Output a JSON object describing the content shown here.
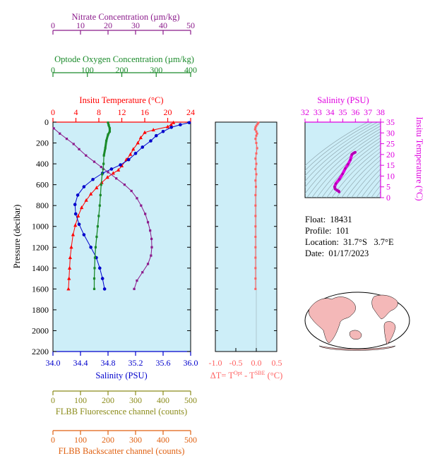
{
  "colors": {
    "nitrate": "#8b1a8b",
    "oxygen": "#1a8a2a",
    "temperature": "#ff0000",
    "salinity": "#0000cc",
    "fluorescence": "#8b8b1a",
    "backscatter": "#e06010",
    "delta_t": "#ff6060",
    "ts_axis": "#e000e0",
    "panel_bg": "#cdeef8"
  },
  "chart_data": [
    {
      "type": "line",
      "panel": "main-profile",
      "ylabel": "Pressure (decibar)",
      "ylim": [
        2200,
        0
      ],
      "yticks": [
        0,
        200,
        400,
        600,
        800,
        1000,
        1200,
        1400,
        1600,
        1800,
        2000,
        2200
      ],
      "axes": {
        "nitrate": {
          "label": "Nitrate Concentration (µm/kg)",
          "range": [
            0,
            50
          ],
          "ticks": [
            "0",
            "10",
            "20",
            "30",
            "40",
            "50"
          ]
        },
        "oxygen": {
          "label": "Optode Oxygen Concentration (µm/kg)",
          "range": [
            0,
            400
          ],
          "ticks": [
            "0",
            "100",
            "200",
            "300",
            "400"
          ]
        },
        "temperature": {
          "label": "Insitu Temperature (°C)",
          "range": [
            0,
            24
          ],
          "ticks": [
            "0",
            "4",
            "8",
            "12",
            "16",
            "20",
            "24"
          ]
        },
        "salinity": {
          "label": "Salinity (PSU)",
          "range": [
            34.0,
            36.0
          ],
          "ticks": [
            "34.0",
            "34.4",
            "34.8",
            "35.2",
            "35.6",
            "36.0"
          ]
        },
        "fluorescence": {
          "label": "FLBB Fluorescence channel (counts)",
          "range": [
            0,
            500
          ],
          "ticks": [
            "0",
            "100",
            "200",
            "300",
            "400",
            "500"
          ]
        },
        "backscatter": {
          "label": "FLBB Backscatter channel (counts)",
          "range": [
            0,
            500
          ],
          "ticks": [
            "0",
            "100",
            "200",
            "300",
            "400",
            "500"
          ]
        }
      },
      "series": [
        {
          "axis": "temperature",
          "marker": "triangle",
          "points": [
            [
              21.0,
              5
            ],
            [
              20.6,
              25
            ],
            [
              20.0,
              45
            ],
            [
              17.5,
              75
            ],
            [
              16.0,
              100
            ],
            [
              15.3,
              150
            ],
            [
              14.8,
              200
            ],
            [
              14.0,
              260
            ],
            [
              13.5,
              310
            ],
            [
              12.8,
              360
            ],
            [
              12.0,
              420
            ],
            [
              11.4,
              460
            ],
            [
              10.5,
              490
            ],
            [
              9.5,
              530
            ],
            [
              8.5,
              580
            ],
            [
              7.6,
              630
            ],
            [
              6.6,
              690
            ],
            [
              5.8,
              750
            ],
            [
              5.0,
              820
            ],
            [
              4.4,
              900
            ],
            [
              3.9,
              990
            ],
            [
              3.5,
              1080
            ],
            [
              3.2,
              1200
            ],
            [
              3.0,
              1300
            ],
            [
              2.9,
              1400
            ],
            [
              2.8,
              1500
            ],
            [
              2.7,
              1600
            ]
          ]
        },
        {
          "axis": "salinity",
          "marker": "circle",
          "points": [
            [
              35.98,
              5
            ],
            [
              35.85,
              25
            ],
            [
              35.72,
              50
            ],
            [
              35.6,
              90
            ],
            [
              35.5,
              130
            ],
            [
              35.42,
              180
            ],
            [
              35.3,
              240
            ],
            [
              35.2,
              300
            ],
            [
              35.1,
              360
            ],
            [
              34.98,
              410
            ],
            [
              34.85,
              450
            ],
            [
              34.72,
              490
            ],
            [
              34.58,
              550
            ],
            [
              34.45,
              620
            ],
            [
              34.36,
              700
            ],
            [
              34.32,
              790
            ],
            [
              34.33,
              880
            ],
            [
              34.38,
              980
            ],
            [
              34.45,
              1080
            ],
            [
              34.55,
              1200
            ],
            [
              34.63,
              1300
            ],
            [
              34.68,
              1400
            ],
            [
              34.72,
              1500
            ],
            [
              34.75,
              1600
            ]
          ]
        },
        {
          "axis": "oxygen",
          "marker": "square",
          "points": [
            [
              160,
              5
            ],
            [
              162,
              30
            ],
            [
              165,
              60
            ],
            [
              165,
              90
            ],
            [
              160,
              120
            ],
            [
              155,
              180
            ],
            [
              152,
              250
            ],
            [
              148,
              320
            ],
            [
              147,
              400
            ],
            [
              146,
              450
            ],
            [
              143,
              500
            ],
            [
              140,
              600
            ],
            [
              138,
              700
            ],
            [
              136,
              800
            ],
            [
              133,
              900
            ],
            [
              130,
              1000
            ],
            [
              127,
              1100
            ],
            [
              124,
              1200
            ],
            [
              122,
              1300
            ],
            [
              121,
              1400
            ],
            [
              120,
              1500
            ],
            [
              120,
              1600
            ]
          ]
        },
        {
          "axis": "nitrate",
          "marker": "square",
          "points": [
            [
              0.3,
              60
            ],
            [
              2.5,
              110
            ],
            [
              5.0,
              160
            ],
            [
              7.5,
              210
            ],
            [
              9.5,
              260
            ],
            [
              12.0,
              320
            ],
            [
              15.0,
              380
            ],
            [
              17.5,
              430
            ],
            [
              20.0,
              480
            ],
            [
              23.0,
              540
            ],
            [
              26.0,
              600
            ],
            [
              28.5,
              660
            ],
            [
              30.5,
              730
            ],
            [
              32.0,
              800
            ],
            [
              33.5,
              880
            ],
            [
              34.5,
              960
            ],
            [
              35.3,
              1040
            ],
            [
              35.8,
              1120
            ],
            [
              35.9,
              1200
            ],
            [
              35.6,
              1280
            ],
            [
              34.5,
              1360
            ],
            [
              32.5,
              1440
            ],
            [
              30.5,
              1520
            ],
            [
              29.5,
              1600
            ]
          ]
        }
      ]
    },
    {
      "type": "line",
      "panel": "delta-t",
      "xlabel": "ΔT= T^Opt - T^SBE (°C)",
      "xlim": [
        -1.0,
        0.5
      ],
      "xticks": [
        "-1.0",
        "-0.5",
        "0.0",
        "0.5"
      ],
      "ylim": [
        2200,
        0
      ],
      "points": [
        [
          0.05,
          5
        ],
        [
          0.03,
          20
        ],
        [
          0.0,
          35
        ],
        [
          -0.02,
          50
        ],
        [
          -0.03,
          70
        ],
        [
          0.0,
          90
        ],
        [
          0.02,
          110
        ],
        [
          0.0,
          130
        ],
        [
          -0.02,
          160
        ],
        [
          0.0,
          200
        ],
        [
          0.02,
          250
        ],
        [
          0.0,
          300
        ],
        [
          -0.02,
          350
        ],
        [
          0.0,
          400
        ],
        [
          -0.02,
          450
        ],
        [
          0.0,
          500
        ],
        [
          -0.02,
          560
        ],
        [
          -0.01,
          620
        ],
        [
          -0.02,
          700
        ],
        [
          -0.02,
          800
        ],
        [
          -0.02,
          900
        ],
        [
          -0.02,
          1000
        ],
        [
          -0.02,
          1100
        ],
        [
          -0.02,
          1200
        ],
        [
          -0.02,
          1300
        ],
        [
          -0.02,
          1400
        ],
        [
          -0.02,
          1500
        ],
        [
          -0.02,
          1600
        ]
      ]
    },
    {
      "type": "line",
      "panel": "ts-diagram",
      "xlabel": "Salinity (PSU)",
      "ylabel": "Insitu Temperature (°C)",
      "xlim": [
        32,
        38
      ],
      "ylim": [
        0,
        35
      ],
      "xticks": [
        "32",
        "33",
        "34",
        "35",
        "36",
        "37",
        "38"
      ],
      "yticks": [
        "0",
        "5",
        "10",
        "15",
        "20",
        "25",
        "30",
        "35"
      ],
      "points": [
        [
          34.7,
          2.7
        ],
        [
          34.68,
          3.0
        ],
        [
          34.55,
          3.4
        ],
        [
          34.4,
          4.0
        ],
        [
          34.35,
          5.0
        ],
        [
          34.45,
          6.5
        ],
        [
          34.72,
          8.5
        ],
        [
          34.98,
          11.0
        ],
        [
          35.2,
          13.5
        ],
        [
          35.42,
          15.5
        ],
        [
          35.6,
          17.5
        ],
        [
          35.72,
          20.0
        ],
        [
          35.85,
          20.6
        ],
        [
          35.98,
          21.0
        ]
      ]
    }
  ],
  "float_info": {
    "float_line": "Float:  18431",
    "profile_line": "Profile:  101",
    "location_line": "Location:  31.7°S   3.7°E",
    "date_line": "Date:  01/17/2023"
  }
}
